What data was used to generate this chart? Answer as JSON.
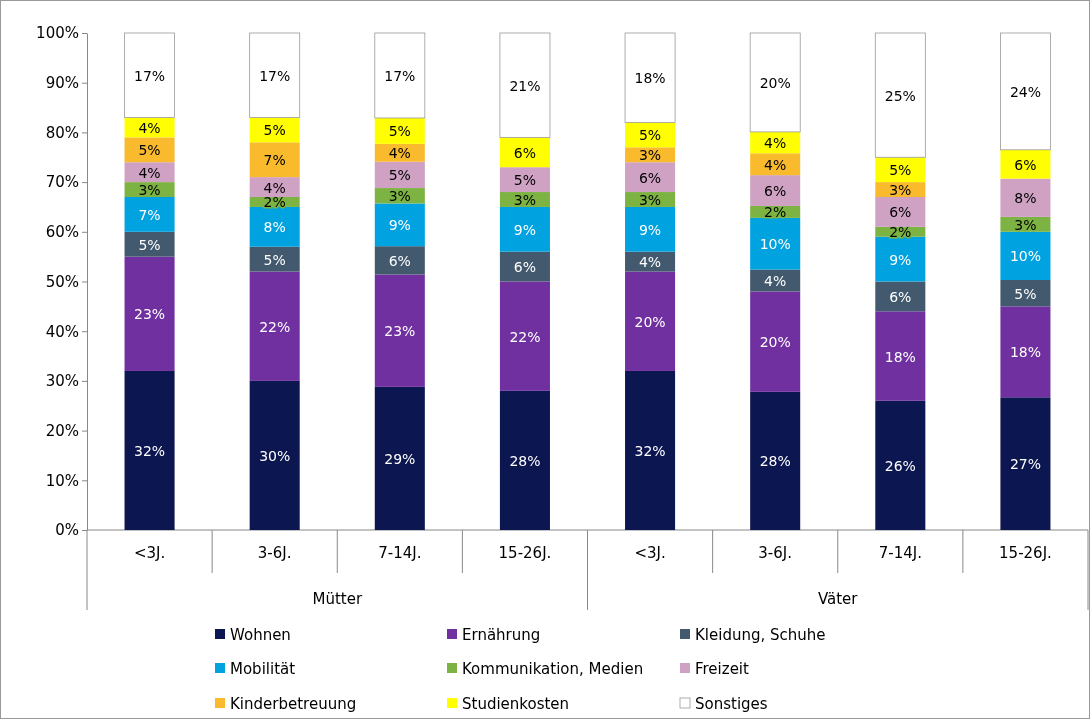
{
  "chart_data": {
    "type": "bar",
    "stacked": true,
    "categories": [
      "<3J.",
      "3-6J.",
      "7-14J.",
      "15-26J.",
      "<3J.",
      "3-6J.",
      "7-14J.",
      "15-26J."
    ],
    "annotations": [
      "Mütter",
      "Väter"
    ],
    "ylim": [
      0,
      100
    ],
    "yticks": [
      {
        "value": 0,
        "label": "0%"
      },
      {
        "value": 10,
        "label": "10%"
      },
      {
        "value": 20,
        "label": "20%"
      },
      {
        "value": 30,
        "label": "30%"
      },
      {
        "value": 40,
        "label": "40%"
      },
      {
        "value": 50,
        "label": "50%"
      },
      {
        "value": 60,
        "label": "60%"
      },
      {
        "value": 70,
        "label": "70%"
      },
      {
        "value": 80,
        "label": "80%"
      },
      {
        "value": 90,
        "label": "90%"
      },
      {
        "value": 100,
        "label": "100%"
      }
    ],
    "grid": false,
    "legend": "bottom",
    "series": [
      {
        "name": "Wohnen",
        "color": "#0c1650",
        "values": [
          32,
          30,
          28.8,
          28,
          32,
          27.8,
          26,
          26.7
        ],
        "value_labels": [
          "32%",
          "30%",
          "29%",
          "28%",
          "32%",
          "28%",
          "26%",
          "27%"
        ]
      },
      {
        "name": "Ernährung",
        "color": "#7030a0",
        "values": [
          23,
          22,
          22.6,
          22,
          20,
          20.2,
          18,
          18.3
        ],
        "value_labels": [
          "23%",
          "22%",
          "23%",
          "22%",
          "20%",
          "20%",
          "18%",
          "18%"
        ]
      },
      {
        "name": "Kleidung, Schuhe",
        "color": "#42596e",
        "values": [
          5,
          5,
          5.7,
          6,
          4,
          4.4,
          6,
          5.3
        ],
        "value_labels": [
          "5%",
          "5%",
          "6%",
          "6%",
          "4%",
          "4%",
          "6%",
          "5%"
        ]
      },
      {
        "name": "Mobilität",
        "color": "#00a2e0",
        "values": [
          7,
          8,
          8.6,
          9,
          9,
          10.4,
          9,
          9.7
        ],
        "value_labels": [
          "7%",
          "8%",
          "9%",
          "9%",
          "9%",
          "10%",
          "9%",
          "10%"
        ]
      },
      {
        "name": "Kommunikation, Medien",
        "color": "#7cb342",
        "values": [
          3,
          2,
          3.1,
          3,
          3,
          2.4,
          2,
          3
        ],
        "value_labels": [
          "3%",
          "2%",
          "3%",
          "3%",
          "3%",
          "2%",
          "2%",
          "3%"
        ]
      },
      {
        "name": "Freizeit",
        "color": "#cfa2c4",
        "values": [
          4,
          4,
          5.3,
          5,
          6,
          6.2,
          6,
          7.7
        ],
        "value_labels": [
          "4%",
          "4%",
          "5%",
          "5%",
          "6%",
          "6%",
          "6%",
          "8%"
        ]
      },
      {
        "name": "Kinderbetreuung",
        "color": "#f9bb2d",
        "values": [
          5,
          7,
          3.6,
          0,
          3,
          4.4,
          3,
          0
        ],
        "value_labels": [
          "5%",
          "7%",
          "4%",
          null,
          "3%",
          "4%",
          "3%",
          null
        ]
      },
      {
        "name": "Studienkosten",
        "color": "#ffff00",
        "values": [
          4,
          5,
          5.2,
          6,
          5,
          4.3,
          5,
          5.8
        ],
        "value_labels": [
          "4%",
          "5%",
          "5%",
          "6%",
          "5%",
          "4%",
          "5%",
          "6%"
        ]
      },
      {
        "name": "Sonstiges",
        "color": "#ffffff",
        "values": [
          17,
          17,
          17.1,
          21,
          18,
          19.9,
          25,
          23.5
        ],
        "value_labels": [
          "17%",
          "17%",
          "17%",
          "21%",
          "18%",
          "20%",
          "25%",
          "24%"
        ]
      }
    ]
  }
}
